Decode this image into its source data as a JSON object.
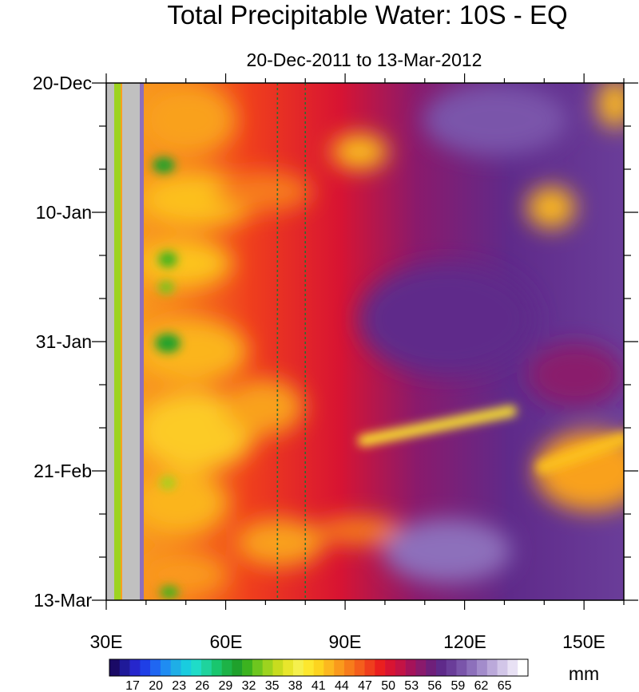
{
  "chart_data": {
    "type": "heatmap",
    "title": "Total Precipitable Water: 10S - EQ",
    "subtitle": "20-Dec-2011 to 13-Mar-2012",
    "x_axis": {
      "range": [
        30,
        160
      ],
      "ticks": [
        {
          "value": 30,
          "label": "30E"
        },
        {
          "value": 60,
          "label": "60E"
        },
        {
          "value": 90,
          "label": "90E"
        },
        {
          "value": 120,
          "label": "120E"
        },
        {
          "value": 150,
          "label": "150E"
        }
      ],
      "minor_step": 10
    },
    "y_axis": {
      "range_days": [
        0,
        84
      ],
      "ticks": [
        {
          "value": 0,
          "label": "20-Dec"
        },
        {
          "value": 21,
          "label": "10-Jan"
        },
        {
          "value": 42,
          "label": "31-Jan"
        },
        {
          "value": 63,
          "label": "21-Feb"
        },
        {
          "value": 84,
          "label": "13-Mar"
        }
      ],
      "minor_step_days": 7
    },
    "reference_lines_lon": [
      73,
      80
    ],
    "land_mask_lon": [
      30,
      33,
      34.5,
      39
    ],
    "colorbar": {
      "unit": "mm",
      "labels": [
        "17",
        "20",
        "23",
        "26",
        "29",
        "32",
        "35",
        "38",
        "41",
        "44",
        "47",
        "50",
        "53",
        "56",
        "59",
        "62",
        "65"
      ],
      "colors": [
        "#1a0a66",
        "#1f1a99",
        "#2626cc",
        "#1f3fe6",
        "#1f66f2",
        "#1f8cf2",
        "#1faee6",
        "#19ccdf",
        "#1fdcc8",
        "#1fd39d",
        "#19c66e",
        "#1db347",
        "#1fa12c",
        "#3cb31f",
        "#6ec61f",
        "#9dd31f",
        "#c8dc1f",
        "#e8e62c",
        "#f5f04d",
        "#fde72e",
        "#fdd41f",
        "#fcb81f",
        "#fa9a1c",
        "#f77c1b",
        "#f45e1c",
        "#ef3e1d",
        "#ea1f1f",
        "#d81432",
        "#c31345",
        "#a5135a",
        "#8a1a6c",
        "#6f1f7a",
        "#5f2a8a",
        "#6a3d99",
        "#7a55aa",
        "#8d70bb",
        "#a38ccb",
        "#bba9da",
        "#d2c6e8",
        "#e8e1f4",
        "#ffffff"
      ]
    }
  }
}
